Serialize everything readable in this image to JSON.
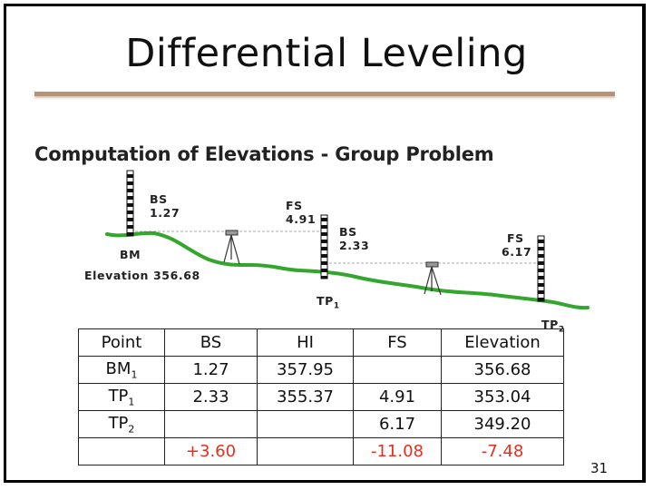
{
  "slide": {
    "title": "Differential Leveling",
    "subtitle": "Computation of Elevations - Group Problem",
    "page_number": "31"
  },
  "diagram": {
    "bs1": {
      "label": "BS",
      "value": "1.27"
    },
    "fs1": {
      "label": "FS",
      "value": "4.91"
    },
    "bs2": {
      "label": "BS",
      "value": "2.33"
    },
    "fs2": {
      "label": "FS",
      "value": "6.17"
    },
    "bm_label": "BM",
    "elevation_label": "Elevation 356.68",
    "tp1": {
      "base": "TP",
      "sub": "1"
    },
    "tp2": {
      "base": "TP",
      "sub": "2"
    }
  },
  "table": {
    "headers": [
      "Point",
      "BS",
      "HI",
      "FS",
      "Elevation"
    ],
    "rows": [
      {
        "point": {
          "base": "BM",
          "sub": "1"
        },
        "bs": "1.27",
        "hi": "357.95",
        "fs": "",
        "elevation": "356.68"
      },
      {
        "point": {
          "base": "TP",
          "sub": "1"
        },
        "bs": "2.33",
        "hi": "355.37",
        "fs": "4.91",
        "elevation": "353.04"
      },
      {
        "point": {
          "base": "TP",
          "sub": "2"
        },
        "bs": "",
        "hi": "",
        "fs": "6.17",
        "elevation": "349.20"
      }
    ],
    "totals": {
      "point": "",
      "bs": "+3.60",
      "hi": "",
      "fs": "-11.08",
      "elevation": "-7.48"
    }
  },
  "colors": {
    "ground": "#33a62e",
    "rule": "#b69277",
    "totals": "#e5301f"
  }
}
